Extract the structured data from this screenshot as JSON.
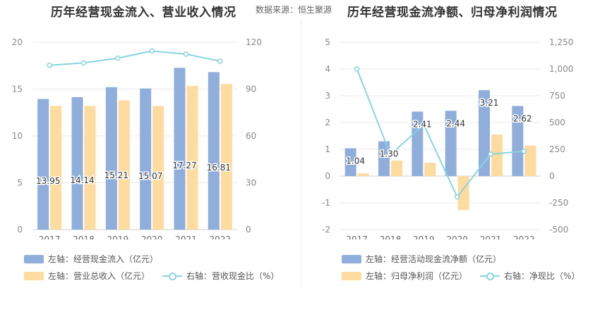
{
  "header": {
    "title_left": "历年经营现金流入、营业收入情况",
    "source": "数据来源：恒生聚源",
    "title_right": "历年经营现金流净额、归母净利润情况"
  },
  "colors": {
    "bar_primary": "#8faedc",
    "bar_secondary": "#fedb9e",
    "line": "#88d4df",
    "grid": "#e8e8e8",
    "axis_text": "#888888"
  },
  "chart_data": [
    {
      "type": "bar",
      "title": "历年经营现金流入、营业收入情况",
      "categories": [
        "2017",
        "2018",
        "2019",
        "2020",
        "2021",
        "2022"
      ],
      "y_left": {
        "ticks": [
          "0",
          "5",
          "10",
          "15",
          "20"
        ],
        "ylim": [
          0,
          20
        ]
      },
      "y_right": {
        "ticks": [
          "0",
          "30",
          "60",
          "90",
          "120"
        ],
        "ylim": [
          0,
          120
        ]
      },
      "grid": true,
      "legend_position": "bottom",
      "series": [
        {
          "name": "左轴：经营现金流入（亿元）",
          "axis": "left",
          "kind": "bar",
          "values": [
            13.95,
            14.14,
            15.21,
            15.07,
            17.27,
            16.81
          ],
          "labels": [
            "13.95",
            "14.14",
            "15.21",
            "15.07",
            "17.27",
            "16.81"
          ]
        },
        {
          "name": "左轴：营业总收入（亿元）",
          "axis": "left",
          "kind": "bar",
          "values": [
            13.2,
            13.2,
            13.8,
            13.2,
            15.35,
            15.55
          ]
        },
        {
          "name": "右轴：营收现金比（%）",
          "axis": "right",
          "kind": "line",
          "values": [
            105.2,
            106.8,
            109.8,
            114.4,
            112.4,
            107.9
          ]
        }
      ]
    },
    {
      "type": "bar",
      "title": "历年经营现金流净额、归母净利润情况",
      "categories": [
        "2017",
        "2018",
        "2019",
        "2020",
        "2021",
        "2022"
      ],
      "y_left": {
        "ticks": [
          "-2",
          "-1",
          "0",
          "1",
          "2",
          "3",
          "4",
          "5"
        ],
        "ylim": [
          -2,
          5
        ]
      },
      "y_right": {
        "ticks": [
          "-500",
          "-250",
          "0",
          "250",
          "500",
          "750",
          "1,000",
          "1,250"
        ],
        "ylim": [
          -500,
          1250
        ]
      },
      "grid": true,
      "legend_position": "bottom",
      "series": [
        {
          "name": "左轴：经营活动现金流净额（亿元）",
          "axis": "left",
          "kind": "bar",
          "values": [
            1.04,
            1.3,
            2.41,
            2.44,
            3.21,
            2.62
          ],
          "labels": [
            "1.04",
            "1.30",
            "2.41",
            "2.44",
            "3.21",
            "2.62"
          ]
        },
        {
          "name": "左轴：归母净利润（亿元）",
          "axis": "left",
          "kind": "bar",
          "values": [
            0.1,
            0.58,
            0.5,
            -1.27,
            1.55,
            1.14
          ]
        },
        {
          "name": "右轴：净现比（%）",
          "axis": "right",
          "kind": "line",
          "values": [
            1000,
            200,
            480,
            -195,
            205,
            232
          ]
        }
      ]
    }
  ]
}
